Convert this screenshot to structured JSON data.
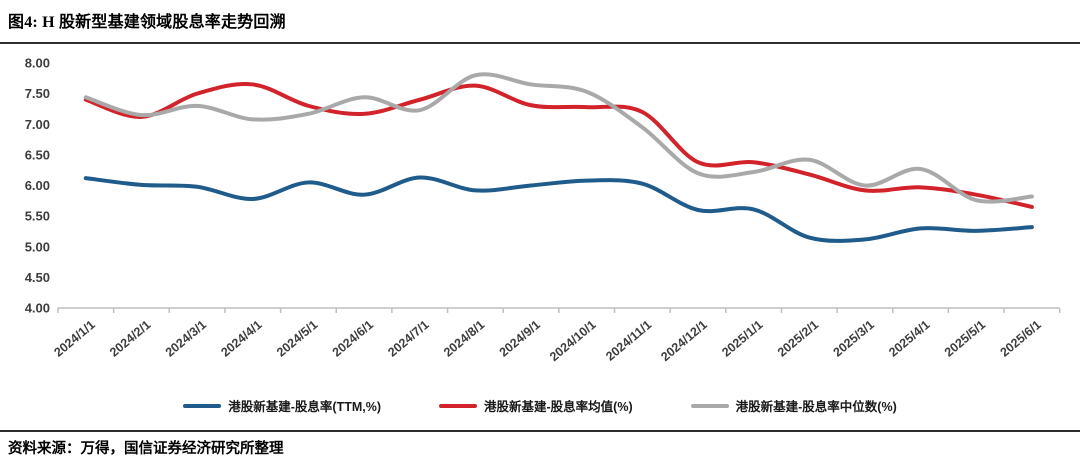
{
  "header": {
    "title": "图4: H 股新型基建领域股息率走势回溯"
  },
  "footer": {
    "source": "资料来源：万得，国信证券经济研究所整理"
  },
  "colors": {
    "ttm_blue": "#1F5C8C",
    "mean_red": "#D2232A",
    "median_gray": "#A9A9A9",
    "axis_line": "#BFBFBF",
    "tick_text": "#3D3D3D",
    "rule": "#2D2D2D"
  },
  "chart_data": {
    "type": "line",
    "smooth": true,
    "grid": false,
    "legend_position": "bottom",
    "title": "图4: H 股新型基建领域股息率走势回溯",
    "categories": [
      "2024/1/1",
      "2024/2/1",
      "2024/3/1",
      "2024/4/1",
      "2024/5/1",
      "2024/6/1",
      "2024/7/1",
      "2024/8/1",
      "2024/9/1",
      "2024/10/1",
      "2024/11/1",
      "2024/12/1",
      "2025/1/1",
      "2025/2/1",
      "2025/3/1",
      "2025/4/1",
      "2025/5/1",
      "2025/6/1"
    ],
    "ylim": [
      4.0,
      8.0
    ],
    "ytick_step": 0.5,
    "yticks": [
      "8.00",
      "7.50",
      "7.00",
      "6.50",
      "6.00",
      "5.50",
      "5.00",
      "4.50",
      "4.00"
    ],
    "series": [
      {
        "name": "港股新基建-股息率(TTM,%)",
        "key": "ttm",
        "color": "#1F5C8C",
        "values": [
          6.12,
          6.01,
          5.98,
          5.78,
          6.05,
          5.85,
          6.13,
          5.92,
          6.0,
          6.08,
          6.03,
          5.6,
          5.61,
          5.15,
          5.12,
          5.3,
          5.26,
          5.32
        ]
      },
      {
        "name": "港股新基建-股息率均值(%)",
        "key": "mean",
        "color": "#D2232A",
        "values": [
          7.4,
          7.12,
          7.5,
          7.65,
          7.3,
          7.17,
          7.4,
          7.63,
          7.31,
          7.28,
          7.2,
          6.38,
          6.38,
          6.18,
          5.92,
          5.97,
          5.85,
          5.65
        ]
      },
      {
        "name": "港股新基建-股息率中位数(%)",
        "key": "median",
        "color": "#A9A9A9",
        "values": [
          7.44,
          7.15,
          7.3,
          7.08,
          7.17,
          7.44,
          7.23,
          7.8,
          7.65,
          7.53,
          6.95,
          6.2,
          6.22,
          6.42,
          6.0,
          6.27,
          5.76,
          5.82
        ]
      }
    ]
  }
}
